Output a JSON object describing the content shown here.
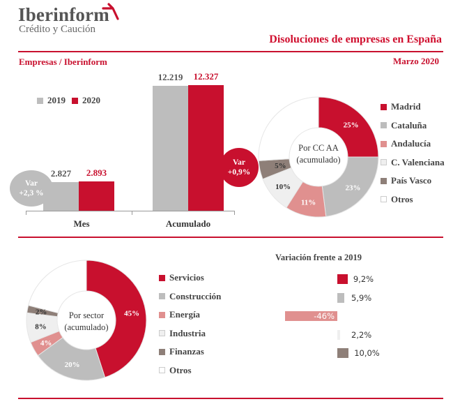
{
  "header": {
    "logo_main": "Iberinform",
    "logo_sub": "Crédito y Caución",
    "title": "Disoluciones de empresas en España",
    "source": "Empresas / Iberinform",
    "date": "Marzo 2020"
  },
  "colors": {
    "red": "#c8102e",
    "gray": "#bdbdbd",
    "pink": "#e0908f",
    "light": "#efefef",
    "brown": "#8e7f78",
    "white": "#ffffff"
  },
  "chart_data": [
    {
      "type": "bar",
      "categories": [
        "Mes",
        "Acumulado"
      ],
      "series": [
        {
          "name": "2019",
          "values": [
            2827,
            12219
          ],
          "labels": [
            "2.827",
            "12.219"
          ]
        },
        {
          "name": "2020",
          "values": [
            2893,
            12327
          ],
          "labels": [
            "2.893",
            "12.327"
          ]
        }
      ],
      "annotations": [
        {
          "category": "Mes",
          "line1": "Var",
          "line2": "+2,3 %"
        },
        {
          "category": "Acumulado",
          "line1": "Var",
          "line2": "+0,9%"
        }
      ]
    },
    {
      "type": "pie",
      "center_label": [
        "Por CC AA",
        "(acumulado)"
      ],
      "slices": [
        {
          "name": "Madrid",
          "value": 25,
          "label": "25%"
        },
        {
          "name": "Cataluña",
          "value": 23,
          "label": "23%"
        },
        {
          "name": "Andalucía",
          "value": 11,
          "label": "11%"
        },
        {
          "name": "C. Valenciana",
          "value": 10,
          "label": "10%"
        },
        {
          "name": "País Vasco",
          "value": 5,
          "label": "5%"
        },
        {
          "name": "Otros",
          "value": 26,
          "label": ""
        }
      ]
    },
    {
      "type": "pie",
      "center_label": [
        "Por sector",
        "(acumulado)"
      ],
      "slices": [
        {
          "name": "Servicios",
          "value": 45,
          "label": "45%"
        },
        {
          "name": "Construcción",
          "value": 20,
          "label": "20%"
        },
        {
          "name": "Energía",
          "value": 4,
          "label": "4%"
        },
        {
          "name": "Industria",
          "value": 8,
          "label": "8%"
        },
        {
          "name": "Finanzas",
          "value": 2,
          "label": "2%"
        },
        {
          "name": "Otros",
          "value": 21,
          "label": ""
        }
      ]
    },
    {
      "type": "bar",
      "orientation": "horizontal",
      "title": "Variación frente a 2019",
      "categories": [
        "Servicios",
        "Construcción",
        "Energía",
        "Industria",
        "Finanzas"
      ],
      "values": [
        9.2,
        5.9,
        -46,
        2.2,
        10.0
      ],
      "labels": [
        "9,2%",
        "5,9%",
        "-46%",
        "2,2%",
        "10,0%"
      ]
    }
  ]
}
